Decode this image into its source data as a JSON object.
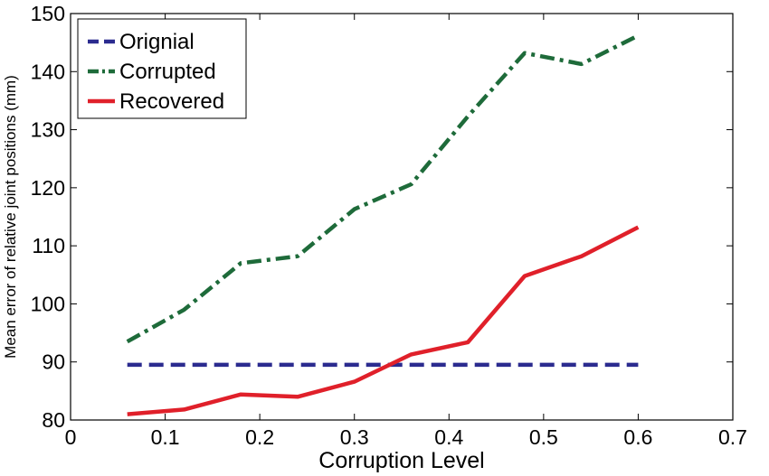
{
  "chart_data": {
    "type": "line",
    "xlabel": "Corruption Level",
    "ylabel": "Mean error of relative joint positions (mm)",
    "xlim": [
      0,
      0.7
    ],
    "ylim": [
      80,
      150
    ],
    "xticks": [
      0,
      0.1,
      0.2,
      0.3,
      0.4,
      0.5,
      0.6,
      0.7
    ],
    "yticks": [
      80,
      90,
      100,
      110,
      120,
      130,
      140,
      150
    ],
    "xtick_labels": [
      "0",
      "0.1",
      "0.2",
      "0.3",
      "0.4",
      "0.5",
      "0.6",
      "0.7"
    ],
    "ytick_labels": [
      "80",
      "90",
      "100",
      "110",
      "120",
      "130",
      "140",
      "150"
    ],
    "grid": false,
    "legend_position": "top-left",
    "x": [
      0.06,
      0.12,
      0.18,
      0.24,
      0.3,
      0.36,
      0.42,
      0.48,
      0.54,
      0.6
    ],
    "series": [
      {
        "name": "Orignial",
        "style": "dashed",
        "color": "#2b2b8f",
        "values": [
          89.5,
          89.5,
          89.5,
          89.5,
          89.5,
          89.5,
          89.5,
          89.5,
          89.5,
          89.5
        ]
      },
      {
        "name": "Corrupted",
        "style": "dashdot",
        "color": "#1e6b3a",
        "values": [
          93.5,
          99.0,
          107.0,
          108.2,
          116.3,
          120.6,
          132.3,
          143.2,
          141.3,
          146.2
        ]
      },
      {
        "name": "Recovered",
        "style": "solid",
        "color": "#e0202a",
        "values": [
          81.0,
          81.8,
          84.4,
          84.0,
          86.6,
          91.3,
          93.4,
          104.8,
          108.2,
          113.2
        ]
      }
    ]
  }
}
